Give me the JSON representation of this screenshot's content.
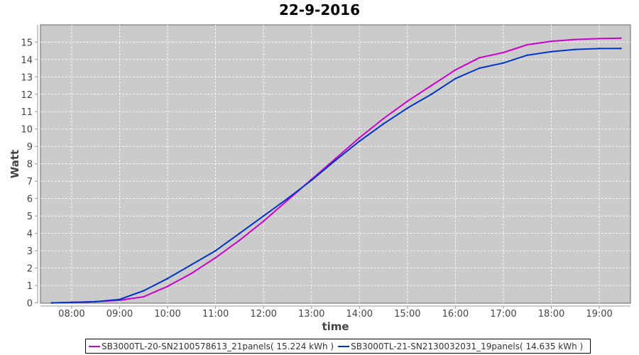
{
  "chart_data": {
    "type": "line",
    "title": "22-9-2016",
    "xlabel": "time",
    "ylabel": "Watt",
    "xlim": [
      "07:21",
      "19:39"
    ],
    "ylim": [
      0,
      15.9
    ],
    "x_ticks": [
      "08:00",
      "09:00",
      "10:00",
      "11:00",
      "12:00",
      "13:00",
      "14:00",
      "15:00",
      "16:00",
      "17:00",
      "18:00",
      "19:00"
    ],
    "y_ticks": [
      0,
      1,
      2,
      3,
      4,
      5,
      6,
      7,
      8,
      9,
      10,
      11,
      12,
      13,
      14,
      15
    ],
    "grid": true,
    "legend_position": "bottom",
    "background": "#cbcbcb",
    "x": [
      "07:35",
      "08:00",
      "08:30",
      "09:00",
      "09:30",
      "10:00",
      "10:30",
      "11:00",
      "11:30",
      "12:00",
      "12:30",
      "13:00",
      "13:30",
      "14:00",
      "14:30",
      "15:00",
      "15:30",
      "16:00",
      "16:30",
      "17:00",
      "17:30",
      "18:00",
      "18:30",
      "19:00",
      "19:27"
    ],
    "series": [
      {
        "name": "SB3000TL-20-SN2100578613_21panels( 15.224 kWh )",
        "color": "#cc00cc",
        "values": [
          0,
          0.03,
          0.07,
          0.15,
          0.35,
          0.95,
          1.7,
          2.6,
          3.6,
          4.7,
          5.9,
          7.1,
          8.3,
          9.5,
          10.6,
          11.6,
          12.5,
          13.4,
          14.1,
          14.4,
          14.85,
          15.05,
          15.15,
          15.2,
          15.224
        ]
      },
      {
        "name": "SB3000TL-21-SN2130032031_19panels( 14.635 kWh )",
        "color": "#0033cc",
        "values": [
          0,
          0.03,
          0.07,
          0.2,
          0.7,
          1.4,
          2.2,
          3.0,
          4.0,
          5.0,
          6.0,
          7.05,
          8.2,
          9.3,
          10.3,
          11.2,
          12.0,
          12.9,
          13.5,
          13.8,
          14.25,
          14.45,
          14.58,
          14.63,
          14.635
        ]
      }
    ]
  }
}
